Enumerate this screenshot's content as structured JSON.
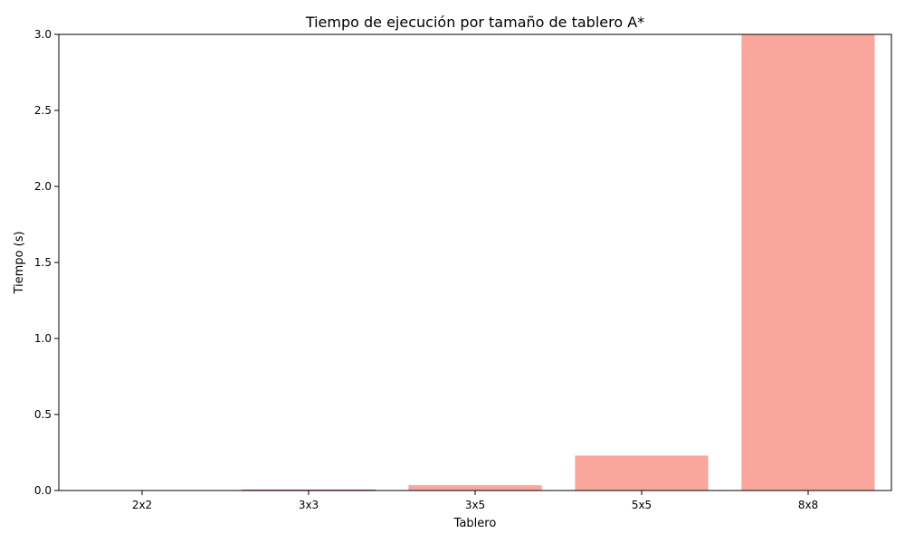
{
  "chart_data": {
    "type": "bar",
    "title": "Tiempo de ejecución por tamaño de tablero A*",
    "xlabel": "Tablero",
    "ylabel": "Tiempo (s)",
    "categories": [
      "2x2",
      "3x3",
      "3x5",
      "5x5",
      "8x8"
    ],
    "values": [
      0.0003,
      0.004,
      0.035,
      0.23,
      3.0
    ],
    "ylim": [
      0,
      3.0
    ],
    "yticks": [
      "0.0",
      "0.5",
      "1.0",
      "1.5",
      "2.0",
      "2.5",
      "3.0"
    ],
    "bar_color": "#fba69c",
    "bar_edge_color": "#b85450",
    "grid": false
  }
}
